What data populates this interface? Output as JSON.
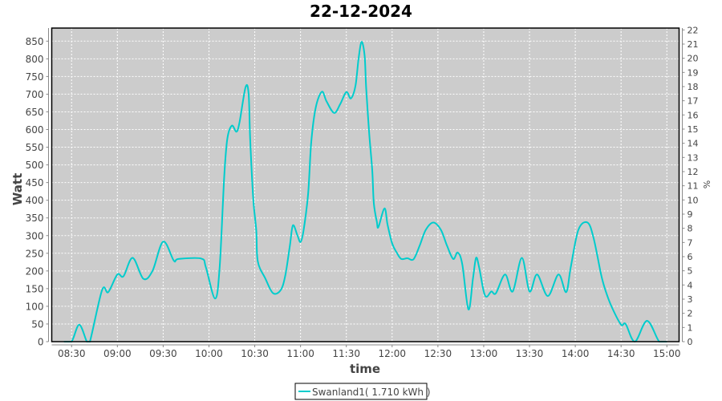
{
  "chart_data": {
    "type": "line",
    "title": "22-12-2024",
    "xlabel": "time",
    "ylabel": "Watt",
    "y2label": "%",
    "xlim": [
      "08:17",
      "15:08"
    ],
    "ylim": [
      0,
      887
    ],
    "y2lim": [
      0,
      22.13
    ],
    "x_ticks": [
      "08:30",
      "09:00",
      "09:30",
      "10:00",
      "10:30",
      "11:00",
      "11:30",
      "12:00",
      "12:30",
      "13:00",
      "13:30",
      "14:00",
      "14:30",
      "15:00"
    ],
    "y_ticks": [
      0,
      50,
      100,
      150,
      200,
      250,
      300,
      350,
      400,
      450,
      500,
      550,
      600,
      650,
      700,
      750,
      800,
      850
    ],
    "y2_ticks": [
      0,
      1,
      2,
      3,
      4,
      5,
      6,
      7,
      8,
      9,
      10,
      11,
      12,
      13,
      14,
      15,
      16,
      17,
      18,
      19,
      20,
      21,
      22
    ],
    "grid": true,
    "background": "#cccccc",
    "legend_position": "bottom",
    "series": [
      {
        "name": "Swanland1( 1.710 kWh )",
        "color": "#00cccc",
        "points": [
          [
            "08:25",
            0
          ],
          [
            "08:30",
            0
          ],
          [
            "08:35",
            48
          ],
          [
            "08:40",
            0
          ],
          [
            "08:42",
            0
          ],
          [
            "08:50",
            146
          ],
          [
            "08:54",
            140
          ],
          [
            "09:00",
            190
          ],
          [
            "09:04",
            185
          ],
          [
            "09:10",
            237
          ],
          [
            "09:17",
            178
          ],
          [
            "09:23",
            200
          ],
          [
            "09:30",
            283
          ],
          [
            "09:37",
            229
          ],
          [
            "09:40",
            234
          ],
          [
            "09:55",
            235
          ],
          [
            "09:58",
            210
          ],
          [
            "10:04",
            122
          ],
          [
            "10:07",
            210
          ],
          [
            "10:10",
            467
          ],
          [
            "10:12",
            573
          ],
          [
            "10:15",
            611
          ],
          [
            "10:18",
            594
          ],
          [
            "10:20",
            620
          ],
          [
            "10:24",
            720
          ],
          [
            "10:26",
            700
          ],
          [
            "10:27",
            573
          ],
          [
            "10:29",
            405
          ],
          [
            "10:31",
            314
          ],
          [
            "10:32",
            227
          ],
          [
            "10:37",
            178
          ],
          [
            "10:42",
            137
          ],
          [
            "10:47",
            146
          ],
          [
            "10:50",
            187
          ],
          [
            "10:53",
            271
          ],
          [
            "10:55",
            329
          ],
          [
            "10:58",
            300
          ],
          [
            "11:00",
            282
          ],
          [
            "11:02",
            315
          ],
          [
            "11:05",
            420
          ],
          [
            "11:07",
            564
          ],
          [
            "11:10",
            663
          ],
          [
            "11:14",
            707
          ],
          [
            "11:17",
            680
          ],
          [
            "11:22",
            647
          ],
          [
            "11:26",
            672
          ],
          [
            "11:30",
            706
          ],
          [
            "11:33",
            688
          ],
          [
            "11:36",
            724
          ],
          [
            "11:38",
            800
          ],
          [
            "11:40",
            848
          ],
          [
            "11:42",
            808
          ],
          [
            "11:43",
            717
          ],
          [
            "11:45",
            588
          ],
          [
            "11:47",
            483
          ],
          [
            "11:48",
            392
          ],
          [
            "11:50",
            339
          ],
          [
            "11:51",
            324
          ],
          [
            "11:55",
            377
          ],
          [
            "11:57",
            331
          ],
          [
            "12:00",
            278
          ],
          [
            "12:03",
            252
          ],
          [
            "12:06",
            234
          ],
          [
            "12:10",
            236
          ],
          [
            "12:14",
            233
          ],
          [
            "12:18",
            271
          ],
          [
            "12:22",
            316
          ],
          [
            "12:27",
            337
          ],
          [
            "12:32",
            316
          ],
          [
            "12:36",
            271
          ],
          [
            "12:40",
            234
          ],
          [
            "12:43",
            252
          ],
          [
            "12:46",
            218
          ],
          [
            "12:50",
            91
          ],
          [
            "12:53",
            180
          ],
          [
            "12:55",
            237
          ],
          [
            "12:57",
            210
          ],
          [
            "13:00",
            142
          ],
          [
            "13:02",
            127
          ],
          [
            "13:05",
            142
          ],
          [
            "13:08",
            137
          ],
          [
            "13:14",
            190
          ],
          [
            "13:19",
            142
          ],
          [
            "13:25",
            237
          ],
          [
            "13:30",
            142
          ],
          [
            "13:35",
            190
          ],
          [
            "13:42",
            129
          ],
          [
            "13:49",
            190
          ],
          [
            "13:54",
            140
          ],
          [
            "13:57",
            210
          ],
          [
            "14:02",
            316
          ],
          [
            "14:08",
            337
          ],
          [
            "14:12",
            293
          ],
          [
            "14:17",
            188
          ],
          [
            "14:20",
            142
          ],
          [
            "14:24",
            97
          ],
          [
            "14:30",
            48
          ],
          [
            "14:33",
            50
          ],
          [
            "14:39",
            0
          ],
          [
            "14:47",
            59
          ],
          [
            "14:55",
            0
          ],
          [
            "15:00",
            0
          ]
        ]
      }
    ]
  }
}
